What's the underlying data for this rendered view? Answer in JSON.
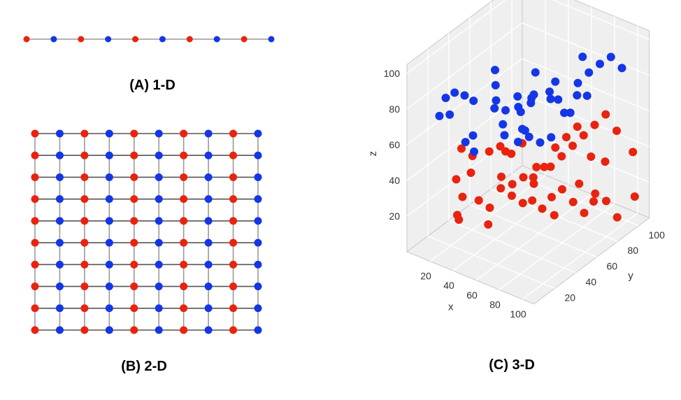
{
  "panels": [
    {
      "id": "A",
      "label": "(A) 1-D"
    },
    {
      "id": "B",
      "label": "(B) 2-D"
    },
    {
      "id": "C",
      "label": "(C) 3-D"
    }
  ],
  "colors": {
    "red": "#e8230f",
    "blue": "#1436e6",
    "line": "#888888",
    "pane": "#efefef",
    "grid": "#ffffff"
  },
  "chart_data": [
    {
      "type": "scatter",
      "panel": "A",
      "points": 10,
      "color_sequence": [
        "red",
        "blue",
        "red",
        "blue",
        "red",
        "blue",
        "red",
        "blue",
        "red",
        "blue"
      ]
    },
    {
      "type": "scatter",
      "panel": "B",
      "grid_size": [
        10,
        10
      ],
      "color_rule": "alternating columns, starting red"
    },
    {
      "type": "scatter",
      "panel": "C",
      "projection": "3d",
      "xlabel": "x",
      "ylabel": "y",
      "zlabel": "z",
      "xlim": [
        0,
        110
      ],
      "ylim": [
        0,
        110
      ],
      "zlim": [
        0,
        105
      ],
      "x_ticks": [
        "20",
        "40",
        "60",
        "80",
        "100"
      ],
      "y_ticks": [
        "20",
        "40",
        "60",
        "80",
        "100"
      ],
      "z_ticks": [
        "20",
        "40",
        "60",
        "80",
        "100"
      ],
      "grid": true,
      "series": [
        {
          "color": "blue",
          "points": [
            [
              10,
              20,
              70
            ],
            [
              20,
              15,
              85
            ],
            [
              25,
              18,
              88
            ],
            [
              30,
              22,
              86
            ],
            [
              28,
              10,
              80
            ],
            [
              35,
              25,
              83
            ],
            [
              40,
              40,
              95
            ],
            [
              45,
              35,
              90
            ],
            [
              50,
              30,
              85
            ],
            [
              55,
              45,
              82
            ],
            [
              60,
              55,
              80
            ],
            [
              62,
              50,
              78
            ],
            [
              70,
              60,
              78
            ],
            [
              72,
              65,
              76
            ],
            [
              65,
              70,
              82
            ],
            [
              80,
              75,
              83
            ],
            [
              85,
              80,
              88
            ],
            [
              90,
              85,
              92
            ],
            [
              95,
              90,
              95
            ],
            [
              100,
              95,
              88
            ],
            [
              35,
              45,
              70
            ],
            [
              40,
              50,
              68
            ],
            [
              45,
              42,
              65
            ],
            [
              50,
              38,
              62
            ],
            [
              55,
              48,
              72
            ],
            [
              60,
              40,
              60
            ],
            [
              65,
              45,
              62
            ],
            [
              30,
              30,
              60
            ],
            [
              28,
              25,
              58
            ],
            [
              40,
              20,
              58
            ],
            [
              50,
              55,
              58
            ],
            [
              70,
              50,
              58
            ],
            [
              75,
              55,
              60
            ],
            [
              78,
              70,
              68
            ],
            [
              80,
              62,
              72
            ],
            [
              82,
              72,
              78
            ],
            [
              88,
              75,
              78
            ],
            [
              60,
              70,
              75
            ],
            [
              55,
              62,
              88
            ],
            [
              75,
              85,
              92
            ],
            [
              42,
              60,
              66
            ],
            [
              48,
              66,
              70
            ],
            [
              66,
              40,
              68
            ]
          ]
        },
        {
          "color": "red",
          "points": [
            [
              20,
              30,
              50
            ],
            [
              25,
              35,
              45
            ],
            [
              30,
              28,
              40
            ],
            [
              35,
              40,
              48
            ],
            [
              40,
              45,
              50
            ],
            [
              45,
              50,
              45
            ],
            [
              50,
              35,
              40
            ],
            [
              55,
              40,
              35
            ],
            [
              60,
              45,
              38
            ],
            [
              65,
              52,
              42
            ],
            [
              70,
              60,
              40
            ],
            [
              75,
              65,
              45
            ],
            [
              80,
              70,
              50
            ],
            [
              85,
              75,
              55
            ],
            [
              90,
              80,
              60
            ],
            [
              95,
              85,
              65
            ],
            [
              100,
              90,
              55
            ],
            [
              105,
              100,
              40
            ],
            [
              20,
              25,
              35
            ],
            [
              30,
              20,
              30
            ],
            [
              35,
              30,
              25
            ],
            [
              40,
              35,
              20
            ],
            [
              45,
              28,
              15
            ],
            [
              50,
              45,
              25
            ],
            [
              55,
              50,
              20
            ],
            [
              60,
              55,
              30
            ],
            [
              65,
              48,
              25
            ],
            [
              70,
              52,
              20
            ],
            [
              75,
              58,
              15
            ],
            [
              80,
              60,
              30
            ],
            [
              85,
              65,
              22
            ],
            [
              90,
              70,
              15
            ],
            [
              95,
              75,
              25
            ],
            [
              100,
              80,
              20
            ],
            [
              105,
              85,
              10
            ],
            [
              60,
              65,
              35
            ],
            [
              55,
              60,
              30
            ],
            [
              45,
              40,
              30
            ],
            [
              65,
              70,
              45
            ],
            [
              70,
              75,
              50
            ],
            [
              75,
              80,
              55
            ],
            [
              50,
              55,
              50
            ],
            [
              40,
              50,
              45
            ],
            [
              85,
              82,
              40
            ],
            [
              90,
              90,
              35
            ],
            [
              102,
              105,
              12
            ],
            [
              30,
              15,
              22
            ],
            [
              25,
              22,
              15
            ],
            [
              60,
              72,
              15
            ],
            [
              72,
              85,
              20
            ],
            [
              80,
              90,
              10
            ]
          ]
        }
      ]
    }
  ]
}
